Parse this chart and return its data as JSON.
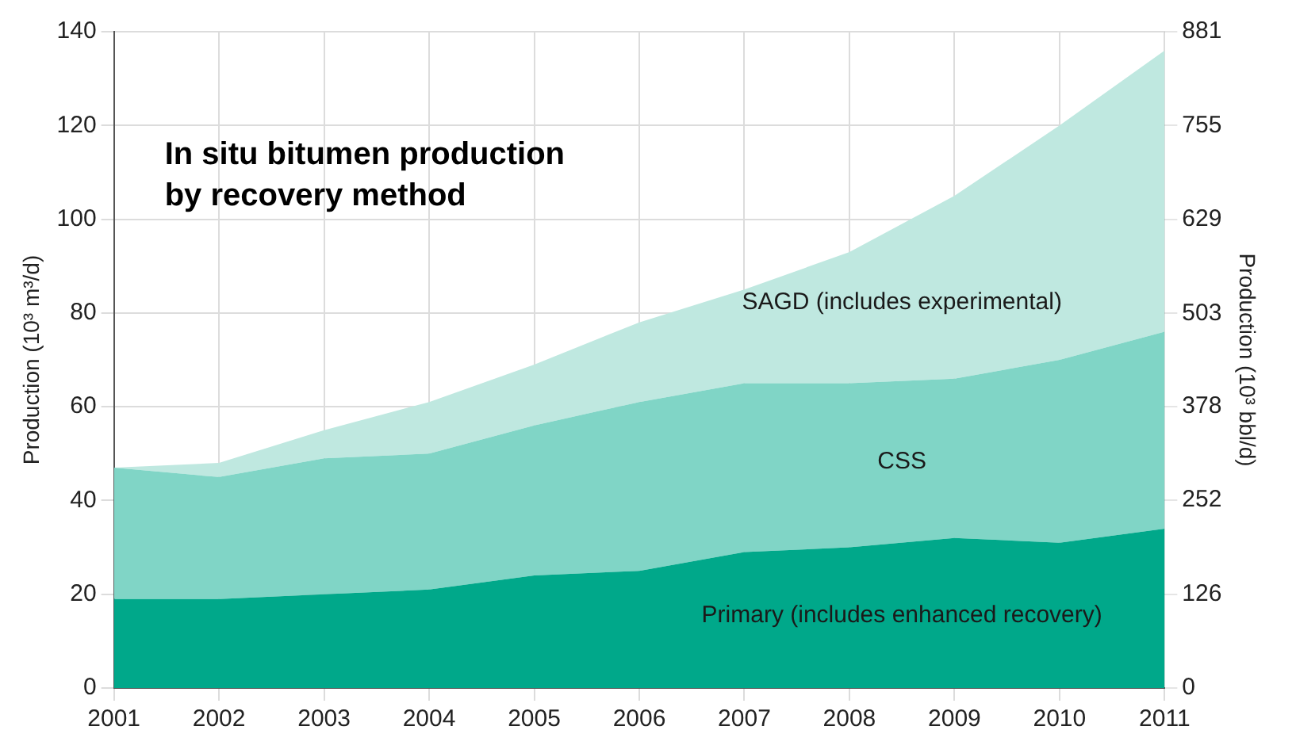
{
  "chart_data": {
    "type": "area",
    "title": "In situ bitumen production by recovery method",
    "ylabel": "Production (10³ m³/d)",
    "y2label": "Production (10³ bbl/d)",
    "x": [
      2001,
      2002,
      2003,
      2004,
      2005,
      2006,
      2007,
      2008,
      2009,
      2010,
      2011
    ],
    "stacked": true,
    "series": [
      {
        "name": "Primary (includes enhanced recovery)",
        "color": "#00a88a",
        "values": [
          19,
          19,
          20,
          21,
          24,
          25,
          29,
          30,
          32,
          31,
          34
        ]
      },
      {
        "name": "CSS",
        "color": "#80d5c6",
        "values": [
          28,
          26,
          29,
          29,
          32,
          36,
          36,
          35,
          34,
          39,
          42
        ]
      },
      {
        "name": "SAGD (includes experimental)",
        "color": "#bfe8e0",
        "values": [
          0,
          3,
          6,
          11,
          13,
          17,
          20,
          28,
          39,
          50,
          60
        ]
      }
    ],
    "xlim": [
      2001,
      2011
    ],
    "xticks": [
      2001,
      2002,
      2003,
      2004,
      2005,
      2006,
      2007,
      2008,
      2009,
      2010,
      2011
    ],
    "ylim": [
      0,
      140
    ],
    "yticks": [
      0,
      20,
      40,
      60,
      80,
      100,
      120,
      140
    ],
    "y2lim": [
      0,
      881
    ],
    "y2ticks": [
      0,
      126,
      252,
      378,
      503,
      629,
      755,
      881
    ],
    "grid": true,
    "legend": false
  }
}
